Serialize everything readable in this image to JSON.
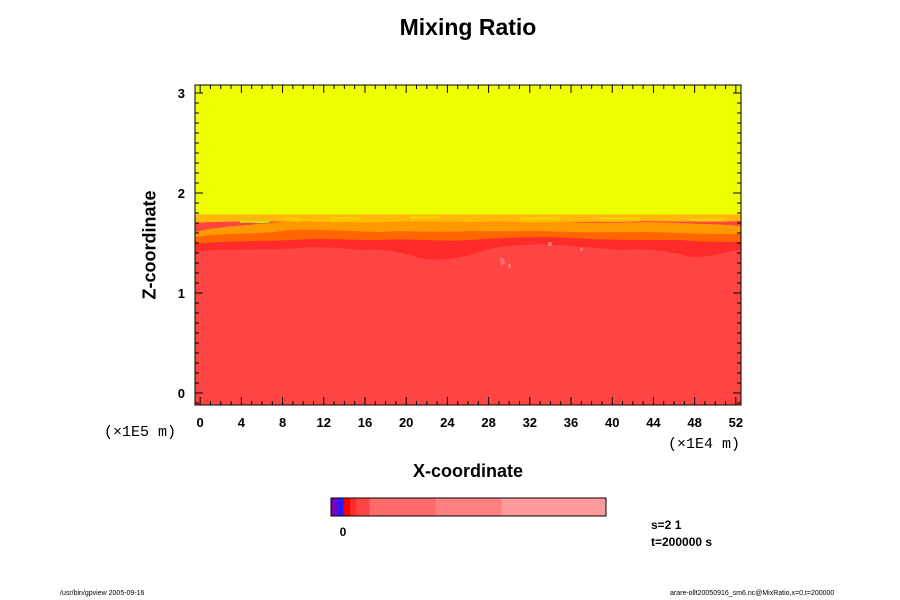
{
  "chart_data": {
    "type": "heatmap",
    "title": "Mixing Ratio",
    "xlabel": "X-coordinate",
    "ylabel": "Z-coordinate",
    "x_unit": "(×1E4 m)",
    "y_unit": "(×1E5 m)",
    "x_ticks": [
      "0",
      "4",
      "8",
      "12",
      "16",
      "20",
      "24",
      "28",
      "32",
      "36",
      "40",
      "44",
      "48",
      "52"
    ],
    "y_ticks": [
      "0",
      "1",
      "2",
      "3"
    ],
    "xlim": [
      -0.5,
      52.5
    ],
    "ylim": [
      -0.12,
      3.08
    ],
    "upper_layer_value_color": "#eeff00",
    "lower_layer_value_color": "#ff4444",
    "interface_height": 1.55,
    "transition_layer": [
      1.45,
      1.8
    ],
    "colorbar": {
      "label": "0",
      "colors": [
        "#8000c0",
        "#2020ff",
        "#ff0000",
        "#ff2a2a",
        "#ff4444",
        "#ff6a6a",
        "#ff8080",
        "#ff9a9a"
      ],
      "fractions": [
        0.025,
        0.02,
        0.025,
        0.02,
        0.05,
        0.24,
        0.24,
        0.38
      ]
    },
    "grid": false,
    "legend": "none"
  },
  "annotations": {
    "s_value": "s=2 1",
    "t_value": "t=200000 s",
    "footer_left": "/usr/bin/gpview 2005-09-16",
    "footer_right": "arare-ollt20050916_sm6.nc@MixRatio,x=0,t=200000"
  }
}
